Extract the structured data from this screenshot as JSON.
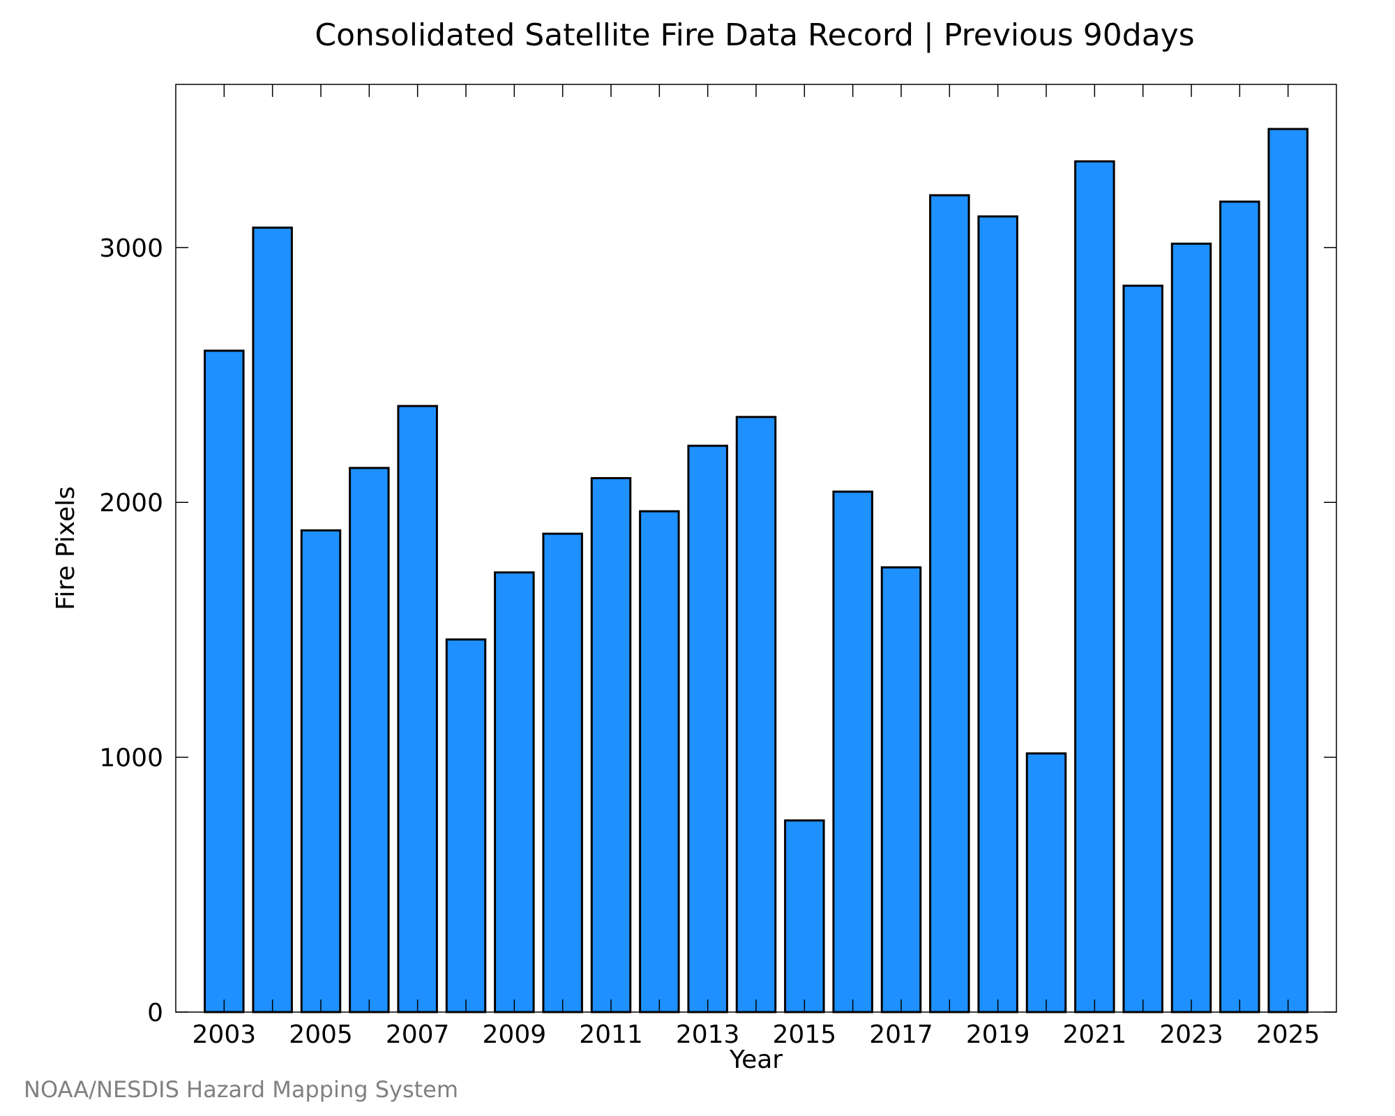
{
  "chart_data": {
    "type": "bar",
    "title": "Consolidated Satellite Fire Data Record | Previous 90days",
    "xlabel": "Year",
    "ylabel": "Fire Pixels",
    "categories": [
      "2003",
      "2004",
      "2005",
      "2006",
      "2007",
      "2008",
      "2009",
      "2010",
      "2011",
      "2012",
      "2013",
      "2014",
      "2015",
      "2016",
      "2017",
      "2018",
      "2019",
      "2020",
      "2021",
      "2022",
      "2023",
      "2024",
      "2025"
    ],
    "values": [
      2595,
      3078,
      1890,
      2135,
      2378,
      1462,
      1725,
      1877,
      2095,
      1965,
      2222,
      2335,
      752,
      2042,
      1745,
      3205,
      3122,
      1015,
      3338,
      2850,
      3015,
      3180,
      3465
    ],
    "x_tick_labels": [
      "2003",
      "2005",
      "2007",
      "2009",
      "2011",
      "2013",
      "2015",
      "2017",
      "2019",
      "2021",
      "2023",
      "2025"
    ],
    "y_tick_labels": [
      "0",
      "1000",
      "2000",
      "3000"
    ],
    "y_ticks": [
      0,
      1000,
      2000,
      3000
    ],
    "ylim": [
      0,
      3640
    ],
    "grid": false,
    "bar_color": "#1e90ff",
    "bar_edge_color": "#000000"
  },
  "credit": "NOAA/NESDIS Hazard Mapping System"
}
